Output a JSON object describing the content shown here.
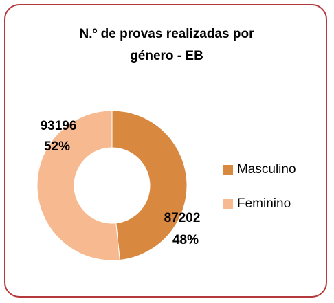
{
  "chart_data": {
    "type": "donut",
    "title": "N.º de provas realizadas por género - EB",
    "categories": [
      "Masculino",
      "Feminino"
    ],
    "values": [
      87202,
      93196
    ],
    "percent_labels": [
      "48%",
      "52%"
    ],
    "colors": [
      "#d98840",
      "#f7b990"
    ],
    "legend": "right"
  }
}
